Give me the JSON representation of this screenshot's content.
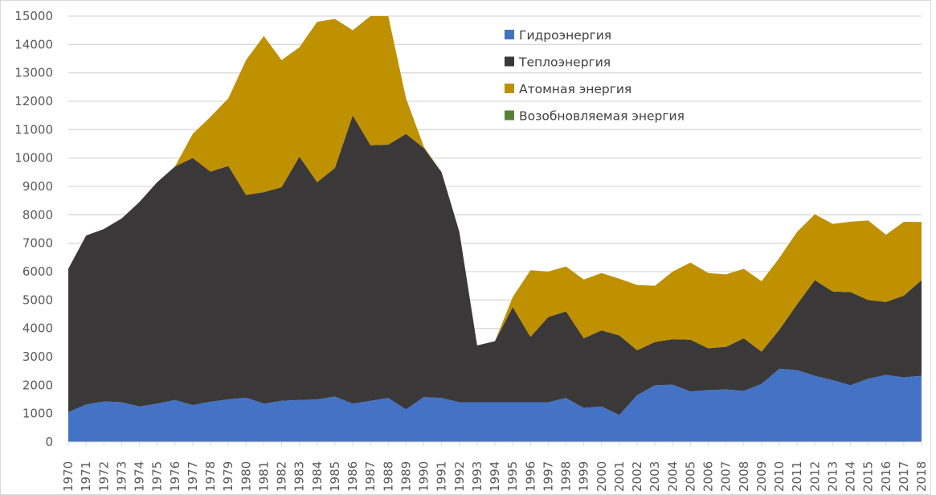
{
  "chart_data": {
    "type": "area",
    "stacked": true,
    "title": "",
    "xlabel": "",
    "ylabel": "",
    "ylim": [
      0,
      15000
    ],
    "yticks": [
      0,
      1000,
      2000,
      3000,
      4000,
      5000,
      6000,
      7000,
      8000,
      9000,
      10000,
      11000,
      12000,
      13000,
      14000,
      15000
    ],
    "grid": true,
    "legend_position": "top-right",
    "x": [
      1970,
      1971,
      1972,
      1973,
      1974,
      1975,
      1976,
      1977,
      1978,
      1979,
      1980,
      1981,
      1982,
      1983,
      1984,
      1985,
      1986,
      1987,
      1988,
      1989,
      1990,
      1991,
      1992,
      1993,
      1994,
      1995,
      1996,
      1997,
      1998,
      1999,
      2000,
      2001,
      2002,
      2003,
      2004,
      2005,
      2006,
      2007,
      2008,
      2009,
      2010,
      2011,
      2012,
      2013,
      2014,
      2015,
      2016,
      2017,
      2018
    ],
    "series": [
      {
        "name": "Гидроэнергия",
        "color": "#4472C4",
        "values": [
          1050,
          1320,
          1430,
          1400,
          1250,
          1350,
          1480,
          1300,
          1420,
          1500,
          1560,
          1350,
          1450,
          1480,
          1500,
          1600,
          1350,
          1450,
          1550,
          1150,
          1580,
          1550,
          1400,
          1400,
          1400,
          1400,
          1400,
          1400,
          1550,
          1200,
          1250,
          950,
          1650,
          2000,
          2020,
          1780,
          1830,
          1850,
          1800,
          2050,
          2580,
          2530,
          2330,
          2180,
          2000,
          2230,
          2360,
          2280,
          2330
        ]
      },
      {
        "name": "Теплоэнергия",
        "color": "#3A3838",
        "values": [
          5050,
          5950,
          6070,
          6470,
          7200,
          7800,
          8220,
          8700,
          8100,
          8220,
          7140,
          7450,
          7520,
          8570,
          7650,
          8050,
          10150,
          9000,
          8920,
          9700,
          8770,
          7950,
          6000,
          2000,
          2150,
          3350,
          2300,
          3000,
          3050,
          2450,
          2680,
          2800,
          1580,
          1520,
          1600,
          1820,
          1470,
          1500,
          1850,
          1130,
          1370,
          2320,
          3370,
          3120,
          3280,
          2770,
          2570,
          2870,
          3370
        ]
      },
      {
        "name": "Атомная энергия",
        "color": "#BF9000",
        "values": [
          0,
          0,
          0,
          0,
          0,
          0,
          0,
          850,
          1930,
          2380,
          4750,
          5500,
          4480,
          3850,
          5650,
          5250,
          3000,
          4650,
          4580,
          1250,
          50,
          0,
          0,
          0,
          0,
          350,
          2350,
          1600,
          1580,
          2070,
          2020,
          2000,
          2300,
          1980,
          2380,
          2720,
          2650,
          2550,
          2450,
          2480,
          2530,
          2550,
          2320,
          2380,
          2480,
          2800,
          2370,
          2600,
          2050
        ]
      },
      {
        "name": "Возобновляемая энергия",
        "color": "#548235",
        "values": [
          0,
          0,
          0,
          0,
          0,
          0,
          0,
          0,
          0,
          0,
          0,
          0,
          0,
          0,
          0,
          0,
          0,
          0,
          0,
          0,
          0,
          0,
          0,
          0,
          0,
          0,
          0,
          0,
          0,
          0,
          0,
          0,
          0,
          0,
          0,
          0,
          0,
          0,
          0,
          0,
          0,
          0,
          0,
          0,
          0,
          0,
          0,
          0,
          0
        ]
      }
    ]
  }
}
